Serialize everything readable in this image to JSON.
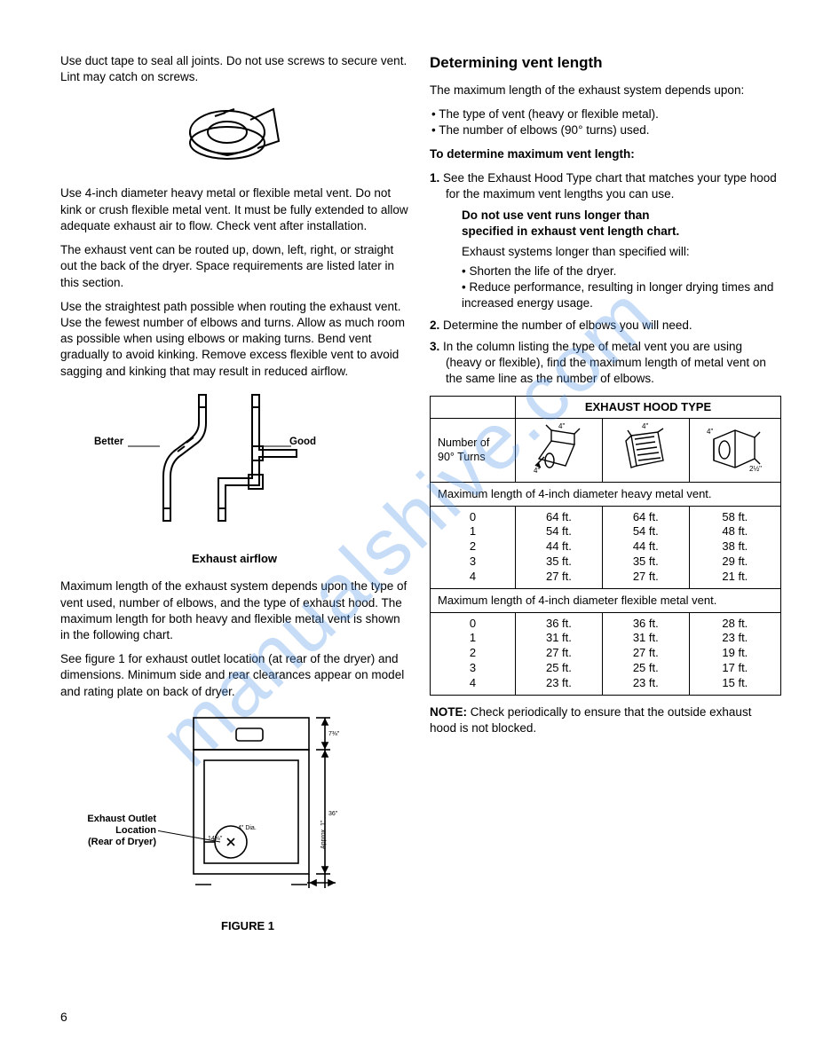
{
  "left": {
    "p1": "Use duct tape to seal all joints. Do not use screws to secure vent. Lint may catch on screws.",
    "p2": "Use 4-inch diameter heavy metal or flexible metal vent. Do not kink or crush flexible metal vent. It must be fully extended to allow adequate exhaust air to flow. Check vent after installation.",
    "p3": "The exhaust vent can be routed up, down, left, right, or straight out the back of the dryer. Space requirements are listed later in this section.",
    "p4": "Use the straightest path possible when routing the exhaust vent. Use the fewest number of elbows and turns. Allow as much room as possible when using elbows or making turns. Bend vent gradually to avoid kinking. Remove excess flexible vent to avoid sagging and kinking that may result in reduced airflow.",
    "airflow_better": "Better",
    "airflow_good": "Good",
    "airflow_caption": "Exhaust airflow",
    "p5": "Maximum length of the exhaust system depends upon the type of vent used, number of elbows, and the type of exhaust hood. The maximum length for both heavy and flexible metal vent is shown in the following chart.",
    "p6": "See figure 1 for exhaust outlet location (at rear of the dryer) and dimensions. Minimum side and rear clearances appear on model and rating plate on back of dryer.",
    "fig1_label_l1": "Exhaust Outlet",
    "fig1_label_l2": "Location",
    "fig1_label_l3": "(Rear of Dryer)",
    "fig1_dia": "4\" Dia.",
    "fig1_caption": "FIGURE 1"
  },
  "right": {
    "heading": "Determining vent length",
    "intro": "The maximum length of the exhaust system depends upon:",
    "bullet1": "The type of vent (heavy or flexible metal).",
    "bullet2": "The number of elbows (90° turns) used.",
    "subhead": "To determine maximum vent length:",
    "step1": "See the Exhaust Hood Type chart that matches your type hood for the maximum vent lengths you can use.",
    "step1_bold_l1": "Do not use vent runs longer than",
    "step1_bold_l2": "specified in exhaust vent length chart.",
    "step1_sub": "Exhaust systems longer than specified will:",
    "step1_b1": "Shorten the life of the dryer.",
    "step1_b2": "Reduce performance, resulting in longer drying times and increased energy usage.",
    "step2": "Determine the number of elbows you will need.",
    "step3": "In the column listing the type of metal vent you are using (heavy or flexible), find the maximum length of metal vent on the same line as the number of elbows.",
    "note_label": "NOTE:",
    "note_text": " Check periodically to ensure that the outside exhaust hood is not blocked."
  },
  "table": {
    "title": "EXHAUST HOOD TYPE",
    "turns_label": "Number of 90° Turns",
    "row_heavy": "Maximum length of 4-inch diameter heavy metal vent.",
    "row_flex": "Maximum length of 4-inch diameter flexible metal vent.",
    "turns": [
      "0",
      "1",
      "2",
      "3",
      "4"
    ],
    "heavy": {
      "c1": [
        "64 ft.",
        "54 ft.",
        "44 ft.",
        "35 ft.",
        "27 ft."
      ],
      "c2": [
        "64 ft.",
        "54 ft.",
        "44 ft.",
        "35 ft.",
        "27 ft."
      ],
      "c3": [
        "58 ft.",
        "48 ft.",
        "38 ft.",
        "29 ft.",
        "21 ft."
      ]
    },
    "flex": {
      "c1": [
        "36 ft.",
        "31 ft.",
        "27 ft.",
        "25 ft.",
        "23 ft."
      ],
      "c2": [
        "36 ft.",
        "31 ft.",
        "27 ft.",
        "25 ft.",
        "23 ft."
      ],
      "c3": [
        "28 ft.",
        "23 ft.",
        "19 ft.",
        "17 ft.",
        "15 ft."
      ]
    },
    "hood_dims": {
      "a": "4\"",
      "b": "4\"",
      "c": "4\"",
      "c2": "2½\""
    }
  },
  "page_number": "6",
  "watermark": "manualshive.com"
}
